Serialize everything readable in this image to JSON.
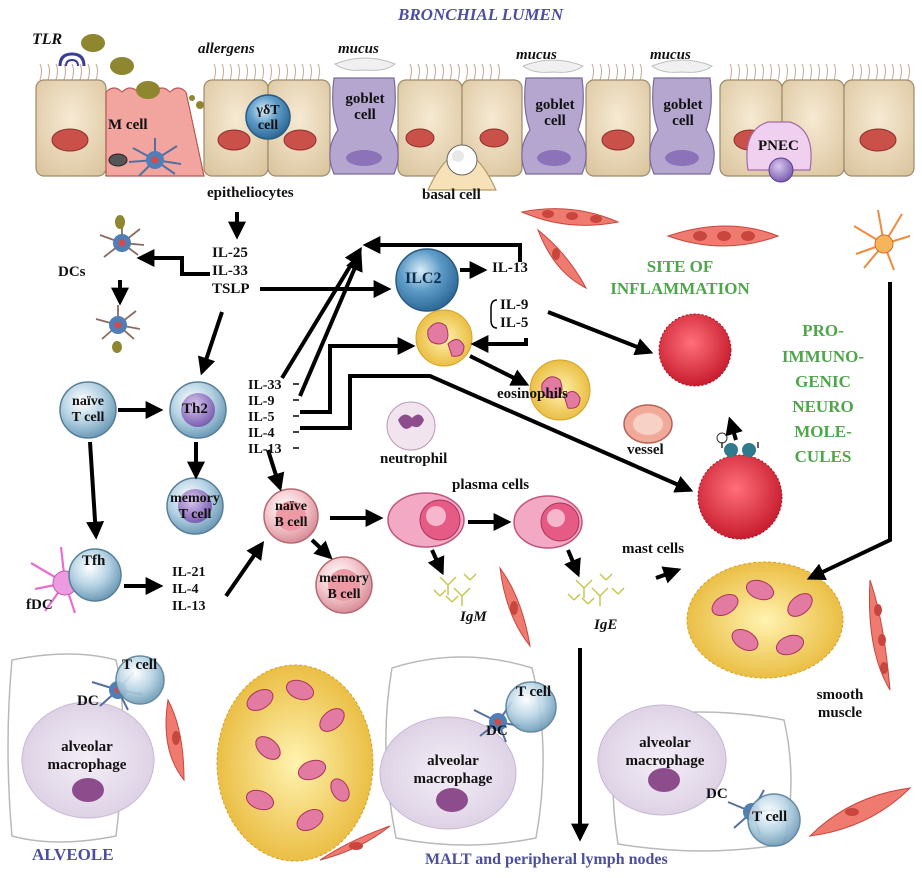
{
  "labels": {
    "bronchial_lumen": "BRONCHIAL LUMEN",
    "tlr": "TLR",
    "allergens": "allergens",
    "mucus": "mucus",
    "m_cell": "M cell",
    "gd_t_cell": "γδT cell",
    "goblet_cell": "goblet cell",
    "basal_cell": "basal cell",
    "pnec": "PNEC",
    "epitheliocytes": "epitheliocytes",
    "dcs": "DCs",
    "il25": "IL-25",
    "il33": "IL-33",
    "tslp": "TSLP",
    "ilc2": "ILC2",
    "il13": "IL-13",
    "il9": "IL-9",
    "il5": "IL-5",
    "site_of_inflammation_1": "SITE OF",
    "site_of_inflammation_2": "INFLAMMATION",
    "pro_immuno": [
      "PRO-",
      "IMMUNO-",
      "GENIC",
      "NEURO",
      "MOLE-",
      "CULES"
    ],
    "naive_t_cell_1": "naïve",
    "naive_t_cell_2": "T cell",
    "th2": "Th2",
    "cytokines_th2": [
      "IL-33",
      "IL-9",
      "IL-5",
      "IL-4",
      "IL-13"
    ],
    "eosinophils": "eosinophils",
    "vessel": "vessel",
    "neutrophil": "neutrophil",
    "memory_t_cell_1": "memory",
    "memory_t_cell_2": "T cell",
    "naive_b_cell_1": "naïve",
    "naive_b_cell_2": "B cell",
    "plasma_cells": "plasma cells",
    "mast_cells": "mast cells",
    "tfh": "Tfh",
    "fdc": "fDC",
    "cytokines_tfh": [
      "IL-21",
      "IL-4",
      "IL-13"
    ],
    "memory_b_cell_1": "memory",
    "memory_b_cell_2": "B cell",
    "igm": "IgM",
    "ige": "IgE",
    "t_cell": "T cell",
    "dc": "DC",
    "alveolar": "alveolar",
    "macrophage": "macrophage",
    "smooth": "smooth",
    "muscle": "muscle",
    "alveole": "ALVEOLE",
    "malt": "MALT and peripheral  lymph nodes"
  },
  "colors": {
    "title_blue": "#4c4f9e",
    "inflammation_green": "#4ea64a",
    "epithelium": "#ecdcc0",
    "nucleus": "#c9514a",
    "goblet": "#b4a6cf",
    "immune_cell": "#9fc1d6",
    "eosinophil_yellow": "#f2d35a",
    "smooth_muscle": "#ef7b70"
  }
}
